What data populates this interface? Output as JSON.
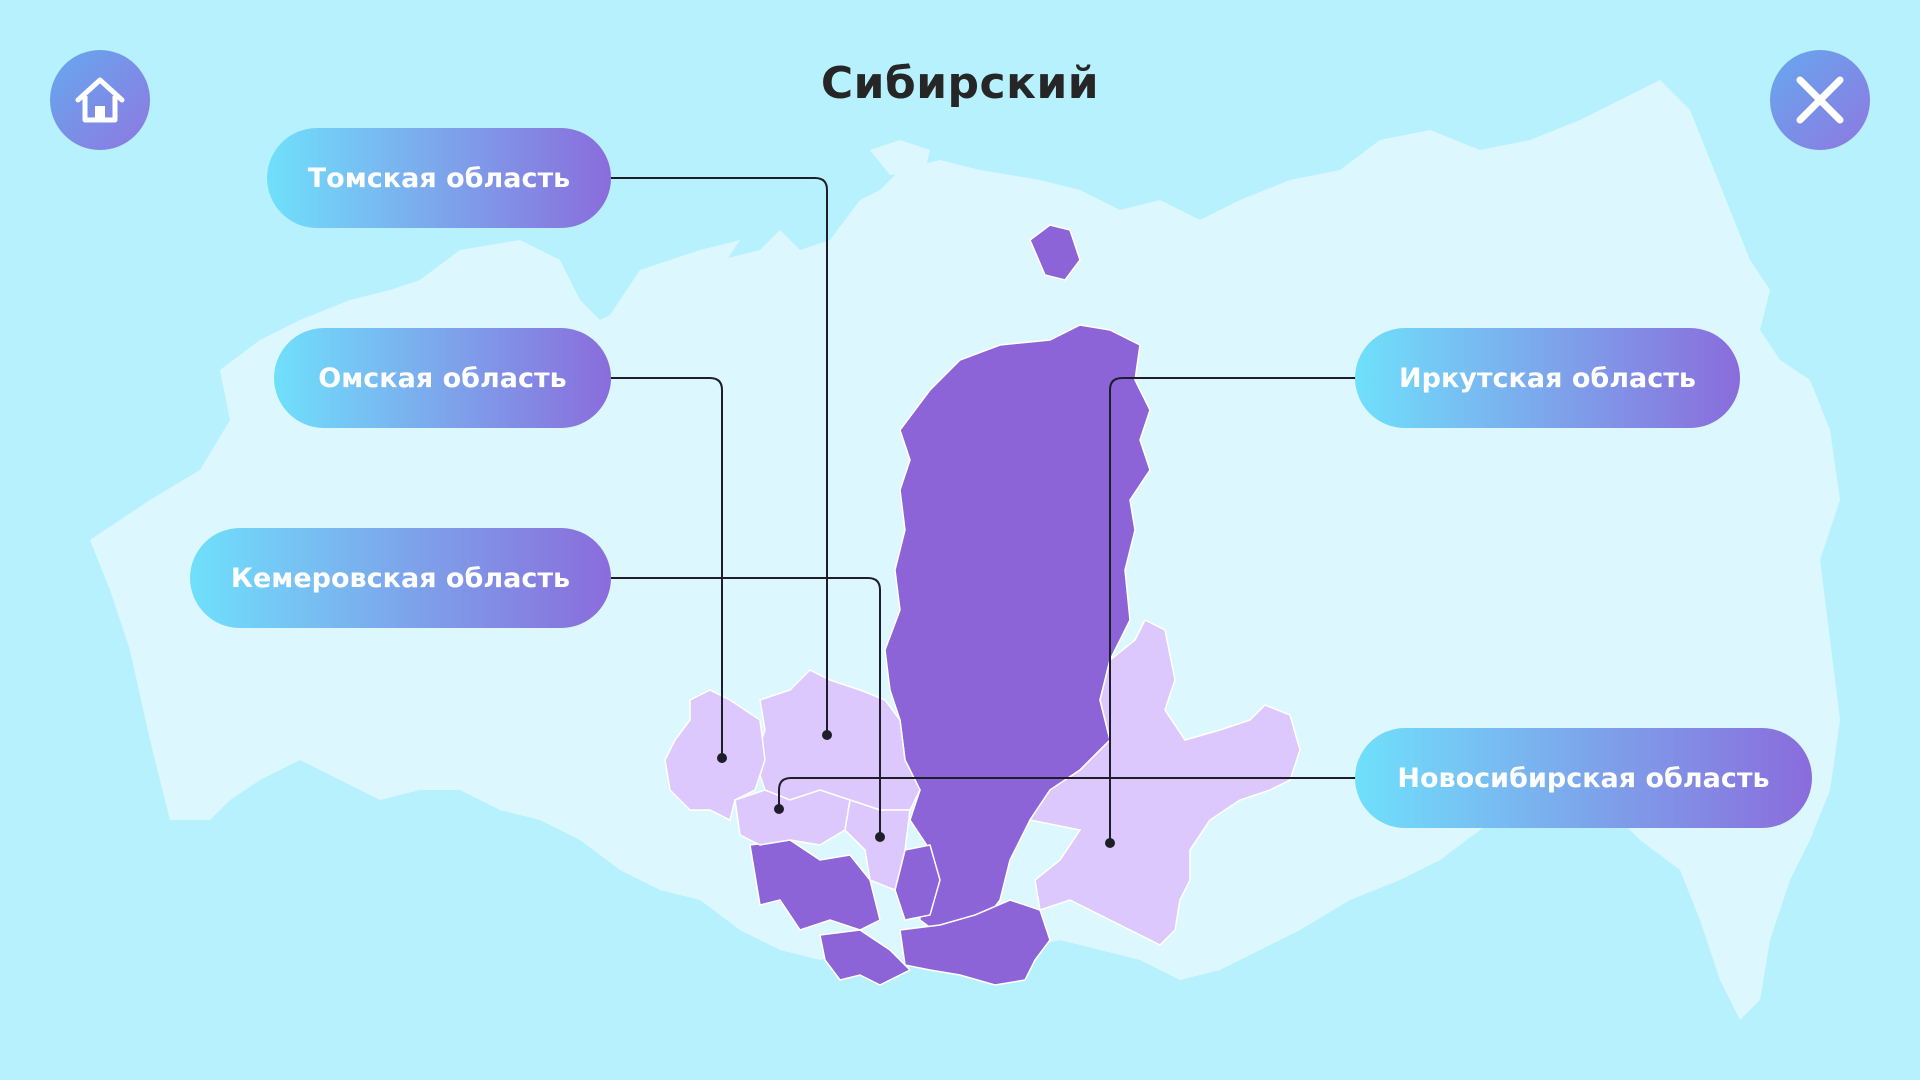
{
  "header": {
    "title": "Сибирский"
  },
  "buttons": {
    "home_icon": "home-icon",
    "close_icon": "close-icon"
  },
  "regions": [
    {
      "id": "tomsk",
      "label": "Томская область"
    },
    {
      "id": "omsk",
      "label": "Омская область"
    },
    {
      "id": "kemerovo",
      "label": "Кемеровская область"
    },
    {
      "id": "irkutsk",
      "label": "Иркутская область"
    },
    {
      "id": "novosibirsk",
      "label": "Новосибирская область"
    }
  ],
  "colors": {
    "background": "#b8f1fe",
    "russia_fill": "#dcf8fe",
    "district_dark": "#8c64d8",
    "district_light": "#dcc8fd",
    "leader_line": "#1e1e2a",
    "pill_start": "#6fe0fb",
    "pill_end": "#8a6cdc"
  }
}
